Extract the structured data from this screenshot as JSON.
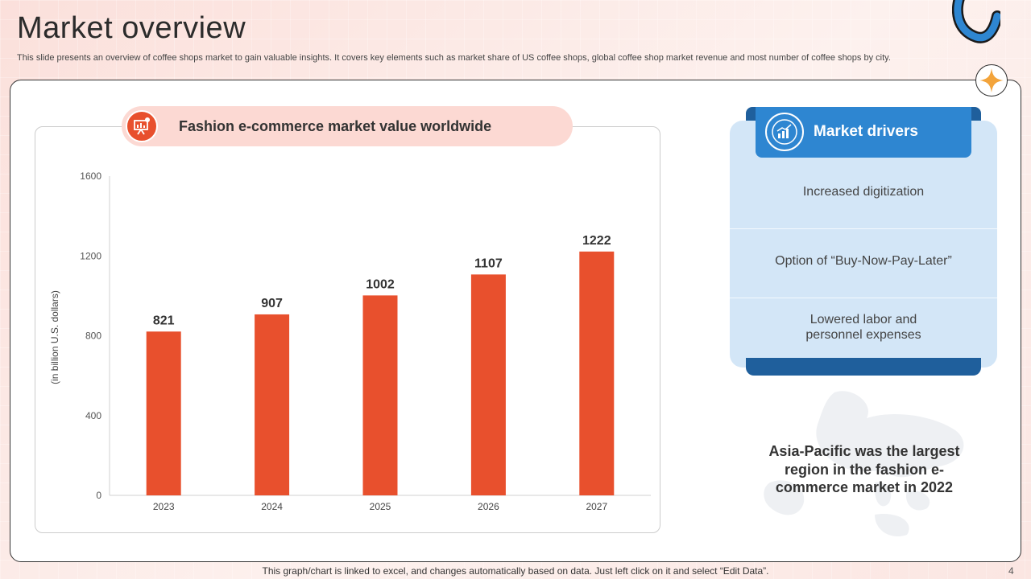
{
  "slide": {
    "title": "Market overview",
    "subtitle": "This slide presents an overview of coffee shops market to gain valuable insights. It covers key elements such as market share of US coffee shops, global coffee shop market revenue and most number of coffee shops by city.",
    "footer": "This graph/chart is linked to excel, and changes automatically based on data. Just left click on it and select “Edit Data”.",
    "page_number": "4"
  },
  "chart_data": {
    "type": "bar",
    "title": "Fashion e-commerce market value worldwide",
    "ylabel": "(in billion U.S. dollars)",
    "xlabel": "",
    "categories": [
      "2023",
      "2024",
      "2025",
      "2026",
      "2027"
    ],
    "values": [
      821,
      907,
      1002,
      1107,
      1222
    ],
    "data_labels": [
      "821",
      "907",
      "1002",
      "1107",
      "1222"
    ],
    "ylim": [
      0,
      1600
    ],
    "yticks": [
      "0",
      "400",
      "800",
      "1200",
      "1600"
    ],
    "grid": false,
    "legend": "none",
    "bar_color": "#e8502d"
  },
  "drivers": {
    "title": "Market drivers",
    "items": [
      "Increased digitization",
      "Option of “Buy-Now-Pay-Later”",
      "Lowered labor and personnel expenses"
    ]
  },
  "insight": "Asia-Pacific was the largest region in the fashion e-commerce market in 2022",
  "colors": {
    "accent_red": "#e8502d",
    "accent_blue": "#2e86d1",
    "dark_blue": "#1f5f9c",
    "panel_blue": "#d3e6f7"
  },
  "icons": {
    "chart_pill_icon": "chart-presentation-icon",
    "drivers_icon": "growth-chart-icon",
    "corner_icon": "star-icon"
  }
}
